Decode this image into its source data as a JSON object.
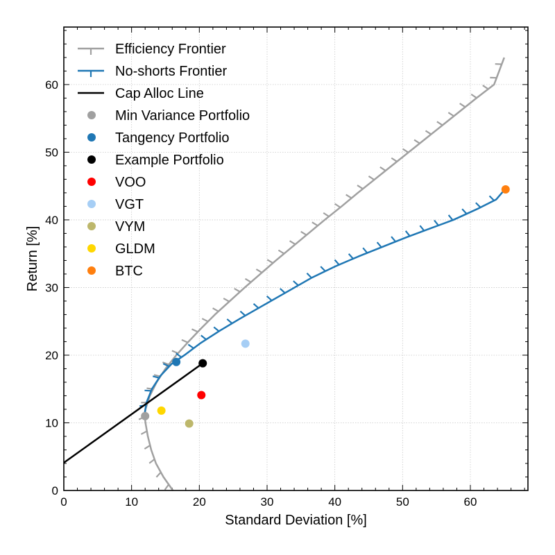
{
  "chart_data": {
    "type": "line",
    "xlabel": "Standard Deviation [%]",
    "ylabel": "Return [%]",
    "xlim": [
      0,
      68.5
    ],
    "ylim": [
      0,
      68.5
    ],
    "xticks": [
      0,
      10,
      20,
      30,
      40,
      50,
      60
    ],
    "yticks": [
      0,
      10,
      20,
      30,
      40,
      50,
      60
    ],
    "grid": true,
    "legend_position": "top-left",
    "colors": {
      "efficiency": "#a0a0a0",
      "noshorts": "#1f77b4",
      "cal": "#000000",
      "minvar": "#a0a0a0",
      "tangency": "#1f77b4",
      "example": "#000000",
      "VOO": "#ff0000",
      "VGT": "#a6cef5",
      "VYM": "#bdb76b",
      "GLDM": "#ffd700",
      "BTC": "#ff7f0e"
    },
    "series": [
      {
        "name": "Efficiency Frontier",
        "kind": "line",
        "color": "#a0a0a0",
        "points": [
          [
            16.1,
            0
          ],
          [
            14.7,
            2
          ],
          [
            13.6,
            4
          ],
          [
            12.9,
            6
          ],
          [
            12.4,
            8
          ],
          [
            12.05,
            10
          ],
          [
            11.95,
            11.0
          ],
          [
            12.05,
            12
          ],
          [
            12.7,
            14
          ],
          [
            13.7,
            16
          ],
          [
            15.0,
            18
          ],
          [
            16.6,
            20
          ],
          [
            18.4,
            22
          ],
          [
            20.3,
            24
          ],
          [
            22.3,
            26
          ],
          [
            24.5,
            28
          ],
          [
            26.7,
            30
          ],
          [
            29.0,
            32
          ],
          [
            31.3,
            34
          ],
          [
            33.7,
            36
          ],
          [
            36.1,
            38
          ],
          [
            38.5,
            40
          ],
          [
            41.0,
            42
          ],
          [
            43.4,
            44
          ],
          [
            45.9,
            46
          ],
          [
            48.4,
            48
          ],
          [
            50.9,
            50
          ],
          [
            53.4,
            52
          ],
          [
            55.9,
            54
          ],
          [
            58.4,
            56
          ],
          [
            60.9,
            58
          ],
          [
            63.5,
            60
          ],
          [
            65.0,
            64.0
          ]
        ]
      },
      {
        "name": "No-shorts Frontier",
        "kind": "line",
        "color": "#1f77b4",
        "points": [
          [
            11.95,
            11.5
          ],
          [
            12.2,
            13
          ],
          [
            13.0,
            15
          ],
          [
            14.3,
            17
          ],
          [
            15.9,
            18.7
          ],
          [
            17.8,
            20
          ],
          [
            20.2,
            21.8
          ],
          [
            23.0,
            23.6
          ],
          [
            26.0,
            25.4
          ],
          [
            29.5,
            27.4
          ],
          [
            33.0,
            29.4
          ],
          [
            36.5,
            31.4
          ],
          [
            40.0,
            33.1
          ],
          [
            43.5,
            34.6
          ],
          [
            47.0,
            36.0
          ],
          [
            50.5,
            37.4
          ],
          [
            54.0,
            38.7
          ],
          [
            57.5,
            40.0
          ],
          [
            61.0,
            41.6
          ],
          [
            63.8,
            43.0
          ],
          [
            65.0,
            44.4
          ]
        ]
      },
      {
        "name": "Cap Alloc Line",
        "kind": "line",
        "color": "#000000",
        "points": [
          [
            0,
            4.1
          ],
          [
            20.5,
            18.8
          ]
        ]
      }
    ],
    "points": [
      {
        "name": "Min Variance Portfolio",
        "x": 12.0,
        "y": 11.0,
        "color": "#a0a0a0"
      },
      {
        "name": "Tangency Portfolio",
        "x": 16.6,
        "y": 19.0,
        "color": "#1f77b4"
      },
      {
        "name": "Example Portfolio",
        "x": 20.5,
        "y": 18.8,
        "color": "#000000"
      },
      {
        "name": "VOO",
        "x": 20.3,
        "y": 14.1,
        "color": "#ff0000"
      },
      {
        "name": "VGT",
        "x": 26.8,
        "y": 21.7,
        "color": "#a6cef5"
      },
      {
        "name": "VYM",
        "x": 18.5,
        "y": 9.9,
        "color": "#bdb76b"
      },
      {
        "name": "GLDM",
        "x": 14.4,
        "y": 11.8,
        "color": "#ffd700"
      },
      {
        "name": "BTC",
        "x": 65.2,
        "y": 44.5,
        "color": "#ff7f0e"
      }
    ],
    "legend": [
      {
        "label": "Efficiency Frontier",
        "kind": "line-tick-up",
        "color": "#a0a0a0"
      },
      {
        "label": "No-shorts Frontier",
        "kind": "line-tick-down",
        "color": "#1f77b4"
      },
      {
        "label": "Cap Alloc Line",
        "kind": "line",
        "color": "#000000"
      },
      {
        "label": "Min Variance Portfolio",
        "kind": "marker",
        "color": "#a0a0a0"
      },
      {
        "label": "Tangency Portfolio",
        "kind": "marker",
        "color": "#1f77b4"
      },
      {
        "label": "Example Portfolio",
        "kind": "marker",
        "color": "#000000"
      },
      {
        "label": "VOO",
        "kind": "marker",
        "color": "#ff0000"
      },
      {
        "label": "VGT",
        "kind": "marker",
        "color": "#a6cef5"
      },
      {
        "label": "VYM",
        "kind": "marker",
        "color": "#bdb76b"
      },
      {
        "label": "GLDM",
        "kind": "marker",
        "color": "#ffd700"
      },
      {
        "label": "BTC",
        "kind": "marker",
        "color": "#ff7f0e"
      }
    ]
  }
}
